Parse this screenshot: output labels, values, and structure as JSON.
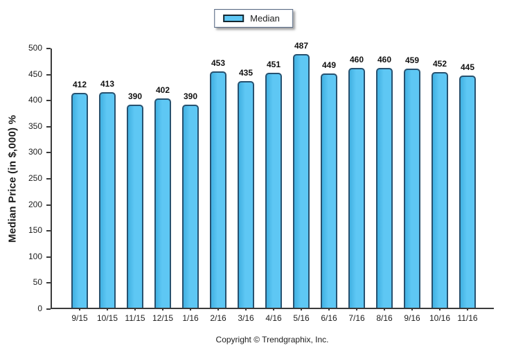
{
  "legend": {
    "items": [
      {
        "label": "Median",
        "swatch_color": "#5ec7f4"
      }
    ]
  },
  "colors": {
    "bar_fill": "#5ec7f4",
    "bar_fill_shade": "#41b1e2",
    "bar_border": "#27516f",
    "axis": "#3a3a3a"
  },
  "footer": {
    "copyright": "Copyright © Trendgraphix, Inc."
  },
  "chart_data": {
    "type": "bar",
    "title": "",
    "categories": [
      "9/15",
      "10/15",
      "11/15",
      "12/15",
      "1/16",
      "2/16",
      "3/16",
      "4/16",
      "5/16",
      "6/16",
      "7/16",
      "8/16",
      "9/16",
      "10/16",
      "11/16"
    ],
    "series": [
      {
        "name": "Median",
        "values": [
          412,
          413,
          390,
          402,
          390,
          453,
          435,
          451,
          487,
          449,
          460,
          460,
          459,
          452,
          445
        ]
      }
    ],
    "xlabel": "",
    "ylabel": "Median Price (in $,000) %",
    "ylim": [
      0,
      500
    ],
    "yticks": [
      0,
      50,
      100,
      150,
      200,
      250,
      300,
      350,
      400,
      450,
      500
    ],
    "grid": false,
    "legend_position": "top-center",
    "bar_value_labels": true
  }
}
